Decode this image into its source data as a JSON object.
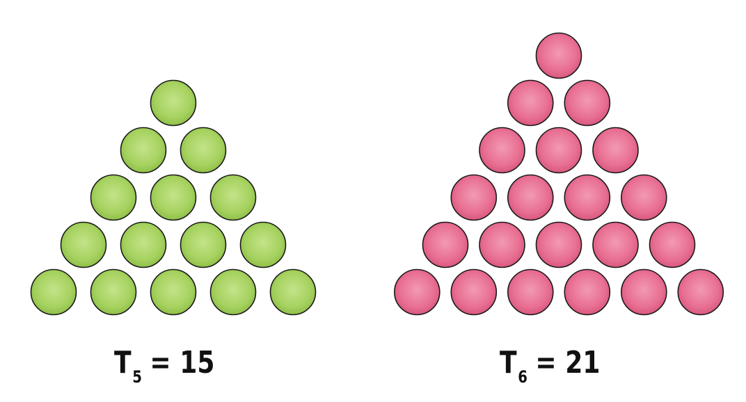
{
  "triangles": [
    {
      "id": "t5",
      "rows": 5,
      "fill_light": "#c4e38a",
      "fill_mid": "#a6d25f",
      "fill_dark": "#8fbf49",
      "label": {
        "symbol": "T",
        "subscript": "5",
        "equals": "=",
        "value": "15"
      }
    },
    {
      "id": "t6",
      "rows": 6,
      "fill_light": "#f29ab3",
      "fill_mid": "#e86f93",
      "fill_dark": "#d9577d",
      "label": {
        "symbol": "T",
        "subscript": "6",
        "equals": "=",
        "value": "21"
      }
    }
  ],
  "stroke_color": "#1a1a1a"
}
